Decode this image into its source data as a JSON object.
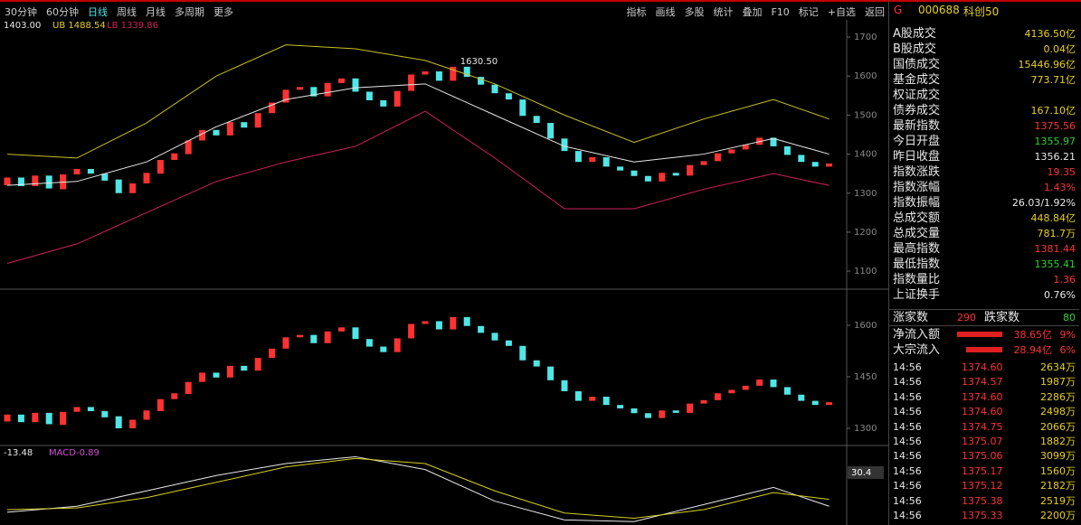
{
  "toolbar": {
    "left_tabs": [
      "30分钟",
      "60分钟",
      "日线",
      "周线",
      "月线",
      "多周期",
      "更多"
    ],
    "right_tabs": [
      "指标",
      "画线",
      "多股",
      "统计",
      "叠加",
      "F10",
      "标记",
      "+自选",
      "返回"
    ]
  },
  "chart_data": {
    "type": "candlestick",
    "legend": [
      "1403.00",
      "UB 1488.54",
      "LB 1339.86"
    ],
    "max_label": "1630.50",
    "ylim": [
      1054,
      1744
    ],
    "yticks": [
      1100,
      1200,
      1300,
      1400,
      1500,
      1600,
      1700
    ],
    "up_color": "#ff3232",
    "down_color": "#4fe6e6",
    "candles": [
      [
        1320,
        1340
      ],
      [
        1340,
        1318
      ],
      [
        1318,
        1345
      ],
      [
        1345,
        1312
      ],
      [
        1310,
        1348
      ],
      [
        1348,
        1362
      ],
      [
        1362,
        1350
      ],
      [
        1350,
        1332
      ],
      [
        1335,
        1300
      ],
      [
        1300,
        1325
      ],
      [
        1325,
        1352
      ],
      [
        1350,
        1385
      ],
      [
        1385,
        1402
      ],
      [
        1400,
        1435
      ],
      [
        1435,
        1462
      ],
      [
        1462,
        1448
      ],
      [
        1448,
        1482
      ],
      [
        1482,
        1468
      ],
      [
        1468,
        1505
      ],
      [
        1505,
        1532
      ],
      [
        1532,
        1565
      ],
      [
        1565,
        1572
      ],
      [
        1572,
        1548
      ],
      [
        1548,
        1582
      ],
      [
        1582,
        1594
      ],
      [
        1594,
        1560
      ],
      [
        1560,
        1538
      ],
      [
        1538,
        1522
      ],
      [
        1522,
        1562
      ],
      [
        1562,
        1604
      ],
      [
        1604,
        1612
      ],
      [
        1612,
        1588
      ],
      [
        1588,
        1624
      ],
      [
        1624,
        1598
      ],
      [
        1598,
        1578
      ],
      [
        1578,
        1556
      ],
      [
        1556,
        1540
      ],
      [
        1540,
        1498
      ],
      [
        1498,
        1480
      ],
      [
        1480,
        1440
      ],
      [
        1440,
        1408
      ],
      [
        1408,
        1380
      ],
      [
        1380,
        1392
      ],
      [
        1392,
        1368
      ],
      [
        1368,
        1358
      ],
      [
        1358,
        1344
      ],
      [
        1344,
        1330
      ],
      [
        1330,
        1352
      ],
      [
        1352,
        1345
      ],
      [
        1345,
        1372
      ],
      [
        1372,
        1382
      ],
      [
        1382,
        1402
      ],
      [
        1402,
        1412
      ],
      [
        1412,
        1424
      ],
      [
        1424,
        1442
      ],
      [
        1442,
        1420
      ],
      [
        1420,
        1398
      ],
      [
        1398,
        1380
      ],
      [
        1380,
        1368
      ],
      [
        1368,
        1376
      ]
    ],
    "bands": {
      "x": [
        0,
        5,
        10,
        15,
        20,
        25,
        30,
        35,
        40,
        45,
        50,
        55,
        59
      ],
      "series": [
        {
          "color": "#c8c020",
          "values": [
            1400,
            1390,
            1480,
            1600,
            1680,
            1670,
            1640,
            1580,
            1500,
            1430,
            1490,
            1540,
            1490
          ]
        },
        {
          "color": "#e8e8e8",
          "values": [
            1320,
            1330,
            1380,
            1470,
            1540,
            1570,
            1580,
            1500,
            1420,
            1380,
            1400,
            1440,
            1400
          ]
        },
        {
          "color": "#d0205a",
          "values": [
            1120,
            1170,
            1250,
            1330,
            1380,
            1420,
            1510,
            1390,
            1260,
            1260,
            1310,
            1350,
            1320
          ]
        }
      ]
    }
  },
  "sub_chart": {
    "ylim": [
      1250,
      1700
    ],
    "yticks": [
      1300,
      1450,
      1600
    ]
  },
  "macd_panel": {
    "legend": [
      "-13.48",
      "MACD",
      "-0.89"
    ],
    "current": "30.4",
    "ylim": [
      -10,
      80
    ],
    "x": [
      0,
      5,
      10,
      15,
      20,
      25,
      30,
      35,
      40,
      45,
      50,
      55,
      59
    ],
    "series": [
      {
        "color": "#e8e8e8",
        "values": [
          5,
          12,
          30,
          48,
          62,
          70,
          55,
          18,
          -4,
          -6,
          14,
          34,
          12
        ]
      },
      {
        "color": "#d8d020",
        "values": [
          8,
          10,
          22,
          40,
          58,
          68,
          62,
          30,
          4,
          -2,
          8,
          28,
          20
        ]
      }
    ]
  },
  "quote": {
    "flag": "G",
    "code": "000688",
    "name": "科创50",
    "rows": [
      {
        "label": "A股成交",
        "value": "4136.50亿",
        "color": "#e8d020"
      },
      {
        "label": "B股成交",
        "value": "0.04亿",
        "color": "#e8d020"
      },
      {
        "label": "国债成交",
        "value": "15446.96亿",
        "color": "#e8d020"
      },
      {
        "label": "基金成交",
        "value": "773.71亿",
        "color": "#e8d020"
      },
      {
        "label": "权证成交"
      },
      {
        "label": "债券成交",
        "value": "167.10亿",
        "color": "#e8d020"
      },
      {
        "label": "最新指数",
        "value": "1375.56",
        "color": "#ff3232"
      },
      {
        "label": "今日开盘",
        "value": "1355.97",
        "color": "#30d030"
      },
      {
        "label": "昨日收盘",
        "value": "1356.21",
        "color": "#e8e8e8"
      },
      {
        "label": "指数涨跌",
        "value": "19.35",
        "color": "#ff3232"
      },
      {
        "label": "指数涨幅",
        "value": "1.43%",
        "color": "#ff3232"
      },
      {
        "label": "指数振幅",
        "value": "26.03/1.92%",
        "color": "#e8e8e8"
      },
      {
        "label": "总成交额",
        "value": "448.84亿",
        "color": "#e8d020"
      },
      {
        "label": "总成交量",
        "value": "781.7万",
        "color": "#e8d020"
      },
      {
        "label": "最高指数",
        "value": "1381.44",
        "color": "#ff3232"
      },
      {
        "label": "最低指数",
        "value": "1355.41",
        "color": "#30d030"
      },
      {
        "label": "指数量比",
        "value": "1.36",
        "color": "#ff3232"
      },
      {
        "label": "上证换手",
        "value": "0.76%",
        "color": "#e8e8e8"
      }
    ],
    "breadth": {
      "up_label": "涨家数",
      "up": "290",
      "down_label": "跌家数",
      "down": "80"
    },
    "flows": [
      {
        "label": "净流入额",
        "value": "38.65亿",
        "pct": "9%"
      },
      {
        "label": "大宗流入",
        "value": "28.94亿",
        "pct": "6%"
      }
    ],
    "ticks": [
      {
        "time": "14:56",
        "price": "1374.60",
        "volume": "2634万"
      },
      {
        "time": "14:56",
        "price": "1374.57",
        "volume": "1987万"
      },
      {
        "time": "14:56",
        "price": "1374.60",
        "volume": "2286万"
      },
      {
        "time": "14:56",
        "price": "1374.60",
        "volume": "2498万"
      },
      {
        "time": "14:56",
        "price": "1374.75",
        "volume": "2066万"
      },
      {
        "time": "14:56",
        "price": "1375.07",
        "volume": "1882万"
      },
      {
        "time": "14:56",
        "price": "1375.06",
        "volume": "3099万"
      },
      {
        "time": "14:56",
        "price": "1375.17",
        "volume": "1560万"
      },
      {
        "time": "14:56",
        "price": "1375.12",
        "volume": "2182万"
      },
      {
        "time": "14:56",
        "price": "1375.38",
        "volume": "2519万"
      },
      {
        "time": "14:56",
        "price": "1375.33",
        "volume": "2200万"
      }
    ]
  }
}
